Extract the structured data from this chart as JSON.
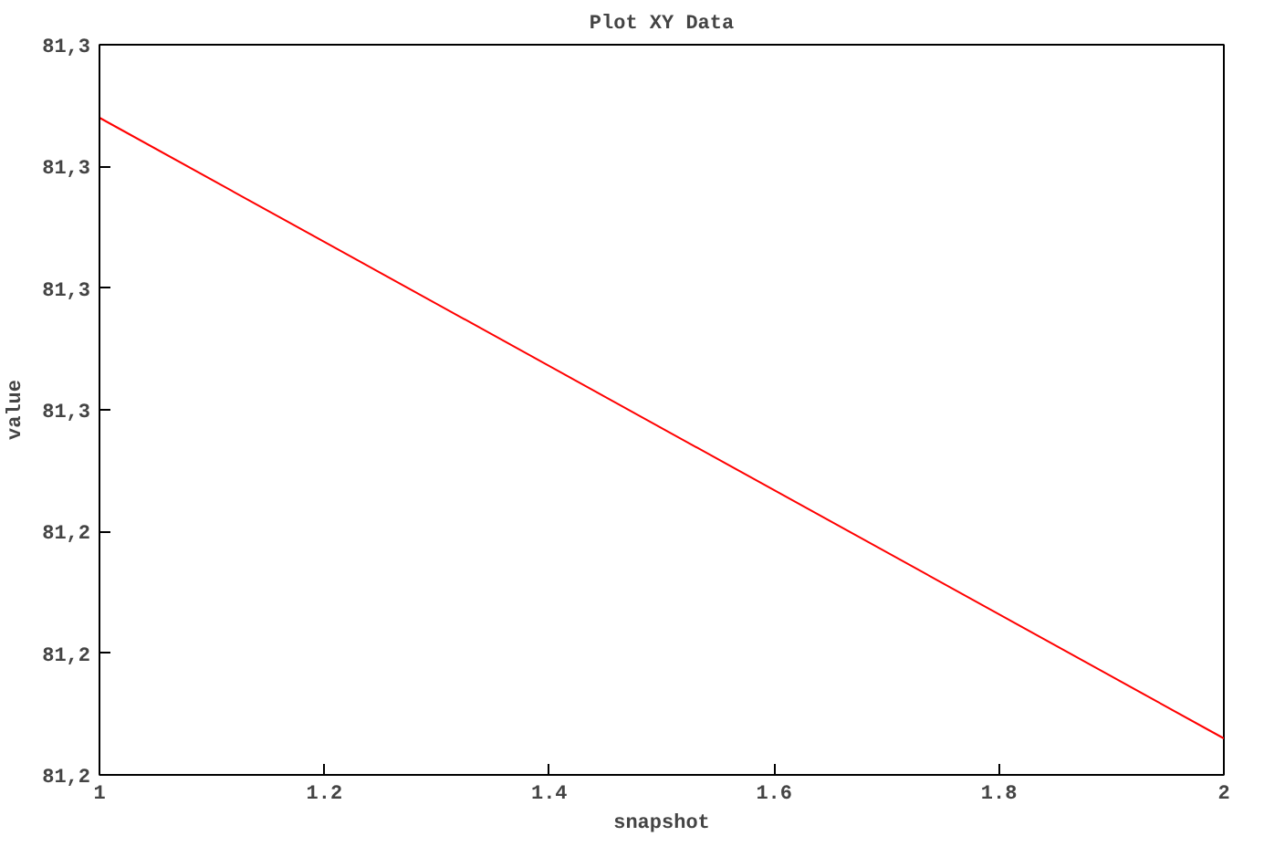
{
  "chart_data": {
    "type": "line",
    "title": "Plot XY Data",
    "xlabel": "snapshot",
    "ylabel": "value",
    "x": [
      1,
      2
    ],
    "series": [
      {
        "color": "#ff0000",
        "values": [
          81.274,
          81.223
        ]
      }
    ],
    "xlim": [
      1,
      2
    ],
    "xticks": [
      1,
      1.2,
      1.4,
      1.6,
      1.8,
      2
    ],
    "ylim": [
      81.22,
      81.28
    ],
    "yticks": [
      {
        "value": 81.22,
        "label": "81,2"
      },
      {
        "value": 81.23,
        "label": "81,2"
      },
      {
        "value": 81.24,
        "label": "81,2"
      },
      {
        "value": 81.25,
        "label": "81,3"
      },
      {
        "value": 81.26,
        "label": "81,3"
      },
      {
        "value": 81.27,
        "label": "81,3"
      },
      {
        "value": 81.28,
        "label": "81,3"
      }
    ],
    "grid": false
  }
}
